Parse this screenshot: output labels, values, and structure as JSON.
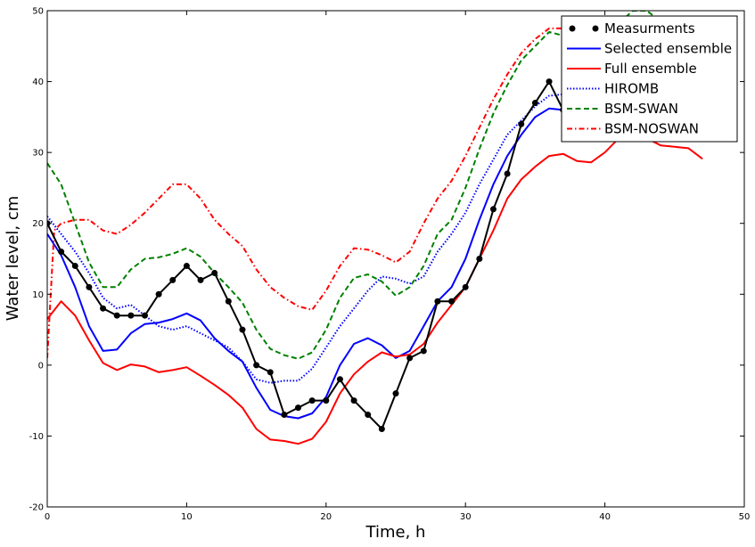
{
  "chart_data": {
    "type": "line",
    "xlabel": "Time, h",
    "ylabel": "Water level, cm",
    "xlim": [
      0,
      50
    ],
    "ylim": [
      -20,
      50
    ],
    "xticks": [
      0,
      10,
      20,
      30,
      40,
      50
    ],
    "yticks": [
      -20,
      -10,
      0,
      10,
      20,
      30,
      40,
      50
    ],
    "grid": false,
    "legend_position": "top-right",
    "series": [
      {
        "name": "Measurments",
        "color": "#000000",
        "style": "solid",
        "marker": "circle",
        "x": [
          0,
          1,
          2,
          3,
          4,
          5,
          6,
          7,
          8,
          9,
          10,
          11,
          12,
          13,
          14,
          15,
          16,
          17,
          18,
          19,
          20,
          21,
          22,
          23,
          24,
          25,
          26,
          27,
          28,
          29,
          30,
          31,
          32,
          33,
          34,
          35,
          36,
          37
        ],
        "y": [
          20,
          16,
          14,
          11,
          8,
          7,
          7,
          7,
          10,
          12,
          14,
          12,
          13,
          9,
          5,
          0,
          -1,
          -7,
          -6,
          -5,
          -5,
          -2,
          -5,
          -7,
          -9,
          -4,
          1,
          2,
          9,
          9,
          11,
          15,
          22,
          27,
          34,
          37,
          40,
          36
        ]
      },
      {
        "name": "Selected ensemble",
        "color": "#0000ff",
        "style": "solid",
        "marker": "none",
        "x": [
          0,
          1,
          2,
          3,
          4,
          5,
          6,
          7,
          8,
          9,
          10,
          11,
          12,
          13,
          14,
          15,
          16,
          17,
          18,
          19,
          20,
          21,
          22,
          23,
          24,
          25,
          26,
          27,
          28,
          29,
          30,
          31,
          32,
          33,
          34,
          35,
          36,
          37,
          38,
          39,
          40
        ],
        "y": [
          18.5,
          15.5,
          11,
          5.5,
          2,
          2.2,
          4.5,
          5.8,
          6,
          6.5,
          7.3,
          6.3,
          3.8,
          2,
          0.5,
          -3.2,
          -6.3,
          -7.2,
          -7.5,
          -6.8,
          -4.5,
          0,
          3,
          3.8,
          2.8,
          1,
          2,
          5.5,
          9,
          11,
          15,
          20.5,
          25.5,
          29.5,
          32.5,
          35,
          36.2,
          36,
          35.5,
          35.8,
          36
        ]
      },
      {
        "name": "Full ensemble",
        "color": "#ff0000",
        "style": "solid",
        "marker": "none",
        "x": [
          0,
          1,
          2,
          3,
          4,
          5,
          6,
          7,
          8,
          9,
          10,
          11,
          12,
          13,
          14,
          15,
          16,
          17,
          18,
          19,
          20,
          21,
          22,
          23,
          24,
          25,
          26,
          27,
          28,
          29,
          30,
          31,
          32,
          33,
          34,
          35,
          36,
          37,
          38,
          39,
          40,
          41,
          42,
          43,
          44,
          45,
          46,
          47
        ],
        "y": [
          6.5,
          9,
          7,
          3.5,
          0.3,
          -0.7,
          0.1,
          -0.2,
          -1,
          -0.7,
          -0.3,
          -1.5,
          -2.8,
          -4.2,
          -6,
          -9,
          -10.5,
          -10.7,
          -11.1,
          -10.4,
          -8,
          -4,
          -1.3,
          0.5,
          1.8,
          1.2,
          1.5,
          3,
          6,
          8.5,
          11,
          15,
          19,
          23.5,
          26.2,
          28,
          29.5,
          29.8,
          28.8,
          28.6,
          30,
          32,
          33.5,
          32,
          31,
          30.8,
          30.6,
          29.1
        ]
      },
      {
        "name": "HIROMB",
        "color": "#0000ff",
        "style": "dotted",
        "marker": "none",
        "x": [
          0,
          1,
          2,
          3,
          4,
          5,
          6,
          7,
          8,
          9,
          10,
          11,
          12,
          13,
          14,
          15,
          16,
          17,
          18,
          19,
          20,
          21,
          22,
          23,
          24,
          25,
          26,
          27,
          28,
          29,
          30,
          31,
          32,
          33,
          34,
          35,
          36,
          37,
          38
        ],
        "y": [
          21,
          18.5,
          16,
          13,
          9.5,
          8,
          8.5,
          7,
          5.5,
          5,
          5.5,
          4.5,
          3.5,
          2.5,
          0.5,
          -2,
          -2.5,
          -2.2,
          -2.2,
          -0.5,
          2.5,
          5.5,
          8,
          10.5,
          12.5,
          12.2,
          11.5,
          12.5,
          16,
          18.5,
          21.5,
          25.5,
          29,
          32.5,
          34.5,
          36.5,
          38,
          38.2,
          38
        ]
      },
      {
        "name": "BSM-SWAN",
        "color": "#008000",
        "style": "dashed",
        "marker": "none",
        "x": [
          0,
          1,
          2,
          3,
          4,
          5,
          6,
          7,
          8,
          9,
          10,
          11,
          12,
          13,
          14,
          15,
          16,
          17,
          18,
          19,
          20,
          21,
          22,
          23,
          24,
          25,
          26,
          27,
          28,
          29,
          30,
          31,
          32,
          33,
          34,
          35,
          36,
          37,
          38,
          39,
          40,
          41,
          42,
          43,
          44
        ],
        "y": [
          28.5,
          25.5,
          20,
          14.5,
          11,
          11,
          13.5,
          15,
          15.2,
          15.7,
          16.5,
          15.3,
          13,
          11,
          8.8,
          5,
          2.3,
          1.4,
          0.9,
          1.8,
          5,
          9.5,
          12.3,
          12.8,
          11.8,
          9.8,
          11,
          14,
          18.5,
          20.5,
          25,
          30.5,
          35.5,
          39.5,
          43,
          45,
          47,
          46.5,
          46.5,
          47.5,
          48,
          48.2,
          50,
          50,
          48.5
        ]
      },
      {
        "name": "BSM-NOSWAN",
        "color": "#ff0000",
        "style": "dashdot",
        "marker": "none",
        "x": [
          0,
          0.5,
          1,
          2,
          3,
          4,
          5,
          6,
          7,
          8,
          9,
          10,
          11,
          12,
          13,
          14,
          15,
          16,
          17,
          18,
          19,
          20,
          21,
          22,
          23,
          24,
          25,
          26,
          27,
          28,
          29,
          30,
          31,
          32,
          33,
          34,
          35,
          36,
          37,
          38
        ],
        "y": [
          1,
          19,
          20,
          20.5,
          20.5,
          19,
          18.5,
          19.8,
          21.5,
          23.5,
          25.5,
          25.5,
          23.5,
          20.5,
          18.5,
          16.8,
          13.5,
          11,
          9.5,
          8.3,
          7.8,
          10.5,
          14,
          16.5,
          16.3,
          15.5,
          14.5,
          16,
          20,
          23.5,
          26,
          29.5,
          33.5,
          37.5,
          41,
          44,
          46,
          47.5,
          47.5,
          47
        ]
      }
    ]
  }
}
